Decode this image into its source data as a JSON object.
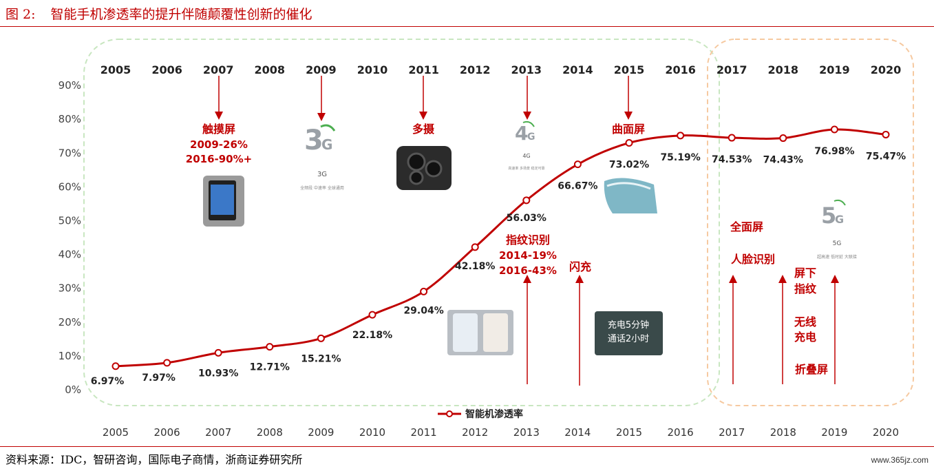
{
  "figure": {
    "number": "图 2:",
    "title": "智能手机渗透率的提升伴随颠覆性创新的催化",
    "source": "资料来源：IDC，智研咨询，国际电子商情，浙商证券研究所",
    "watermark": "www.365jz.com"
  },
  "chart_data": {
    "type": "line",
    "x": [
      2005,
      2006,
      2007,
      2008,
      2009,
      2010,
      2011,
      2012,
      2013,
      2014,
      2015,
      2016,
      2017,
      2018,
      2019,
      2020
    ],
    "x_tick_labels": [
      "2005",
      "2006",
      "2007",
      "2008",
      "2009",
      "2010",
      "2011",
      "2012",
      "2013",
      "2014",
      "2015",
      "2016",
      "2017",
      "2018",
      "2019",
      "2020"
    ],
    "y_tick_labels": [
      "0%",
      "10%",
      "20%",
      "30%",
      "40%",
      "50%",
      "60%",
      "70%",
      "80%",
      "90%"
    ],
    "ylim": [
      0,
      90
    ],
    "grid": false,
    "legend_position": "bottom-center",
    "series": [
      {
        "name": "智能机渗透率",
        "values": [
          6.97,
          7.97,
          10.93,
          12.71,
          15.21,
          22.18,
          29.04,
          42.18,
          56.03,
          66.67,
          73.02,
          75.19,
          74.53,
          74.43,
          76.98,
          75.47
        ],
        "labels": [
          "6.97%",
          "7.97%",
          "10.93%",
          "12.71%",
          "15.21%",
          "22.18%",
          "29.04%",
          "42.18%",
          "56.03%",
          "66.67%",
          "73.02%",
          "75.19%",
          "74.53%",
          "74.43%",
          "76.98%",
          "75.47%"
        ],
        "color": "#c00000"
      }
    ],
    "annotations": {
      "touch": [
        "触摸屏",
        "2009-26%",
        "2016-90%+"
      ],
      "camera": "多摄",
      "curved": "曲面屏",
      "fingerprint": [
        "指纹识别",
        "2014-19%",
        "2016-43%"
      ],
      "fastcharge": "闪充",
      "fullscreen": "全面屏",
      "face": "人脸识别",
      "underscreen": [
        "屏下",
        "指纹"
      ],
      "wireless": [
        "无线",
        "充电"
      ],
      "foldable": "折叠屏",
      "fastcharge_img": [
        "充电5分钟",
        "通话2小时"
      ],
      "icon_3g": {
        "big": "3",
        "g": "G",
        "cap": "3G",
        "tiny": "全频段 中速率 全球通用"
      },
      "icon_4g": {
        "big": "4",
        "g": "G",
        "cap": "4G",
        "tiny": "高速率 多场景 稳定可靠"
      },
      "icon_5g": {
        "big": "5",
        "g": "G",
        "cap": "5G",
        "tiny": "超高速 低时延 大联接"
      }
    },
    "colors": {
      "accent": "#c00000",
      "era1_box": "#c8e6c0",
      "era2_box": "#f6c9a0"
    }
  }
}
